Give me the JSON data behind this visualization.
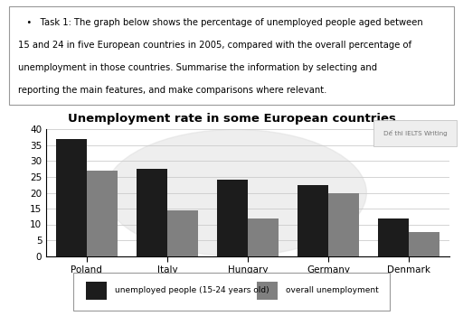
{
  "title": "Unemployment rate in some European countries",
  "categories": [
    "Poland",
    "Italy",
    "Hungary",
    "Germany",
    "Denmark"
  ],
  "youth_unemployment": [
    37,
    27.5,
    24,
    22.5,
    12
  ],
  "overall_unemployment": [
    27,
    14.5,
    12,
    20,
    7.5
  ],
  "bar_color_youth": "#1c1c1c",
  "bar_color_overall": "#808080",
  "legend_youth": "unemployed people (15-24 years old)",
  "legend_overall": "overall unemployment",
  "ylim": [
    0,
    40
  ],
  "yticks": [
    0,
    5,
    10,
    15,
    20,
    25,
    30,
    35,
    40
  ],
  "watermark_text": "Dế thi IELTS Writing",
  "text_line1": "   •   Task 1: The graph below shows the percentage of unemployed people aged between",
  "text_line2": "15 and 24 in five European countries in 2005, compared with the overall percentage of",
  "text_line3": "unemployment in those countries. Summarise the information by selecting and",
  "text_line4": "reporting the main features, and make comparisons where relevant.",
  "bar_width": 0.38
}
